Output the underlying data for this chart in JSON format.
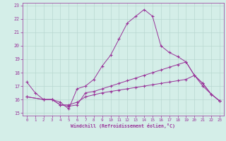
{
  "xlabel": "Windchill (Refroidissement éolien,°C)",
  "bg_color": "#d4eee8",
  "line_color": "#993399",
  "grid_color": "#b8d8d0",
  "xlim": [
    -0.5,
    23.5
  ],
  "ylim": [
    14.8,
    23.2
  ],
  "yticks": [
    15,
    16,
    17,
    18,
    19,
    20,
    21,
    22,
    23
  ],
  "xticks": [
    0,
    1,
    2,
    3,
    4,
    5,
    6,
    7,
    8,
    9,
    10,
    11,
    12,
    13,
    14,
    15,
    16,
    17,
    18,
    19,
    20,
    21,
    22,
    23
  ],
  "line1_x": [
    0,
    1,
    2,
    3,
    4,
    5,
    6,
    7,
    8,
    9,
    10,
    11,
    12,
    13,
    14,
    15,
    16,
    17,
    18,
    19,
    20,
    21,
    22,
    23
  ],
  "line1_y": [
    17.3,
    16.5,
    16.0,
    16.0,
    15.8,
    15.3,
    16.8,
    17.0,
    17.5,
    18.5,
    19.3,
    20.5,
    21.7,
    22.2,
    22.7,
    22.2,
    20.0,
    19.5,
    19.2,
    18.8,
    17.8,
    17.2,
    16.4,
    15.9
  ],
  "line2_x": [
    0,
    2,
    3,
    4,
    5,
    6,
    7,
    8,
    9,
    10,
    11,
    12,
    13,
    14,
    15,
    16,
    17,
    18,
    19,
    20,
    21,
    22,
    23
  ],
  "line2_y": [
    16.2,
    16.0,
    16.0,
    15.6,
    15.6,
    15.8,
    16.2,
    16.35,
    16.5,
    16.6,
    16.7,
    16.8,
    16.9,
    17.0,
    17.1,
    17.2,
    17.3,
    17.4,
    17.5,
    17.8,
    17.2,
    16.4,
    15.9
  ],
  "line3_x": [
    0,
    2,
    3,
    4,
    5,
    6,
    7,
    8,
    9,
    10,
    11,
    12,
    13,
    14,
    15,
    16,
    17,
    18,
    19,
    20,
    21,
    22,
    23
  ],
  "line3_y": [
    16.2,
    16.0,
    16.0,
    15.6,
    15.5,
    15.6,
    16.5,
    16.6,
    16.8,
    17.0,
    17.2,
    17.4,
    17.6,
    17.8,
    18.0,
    18.2,
    18.4,
    18.6,
    18.8,
    17.8,
    17.0,
    16.4,
    15.9
  ]
}
